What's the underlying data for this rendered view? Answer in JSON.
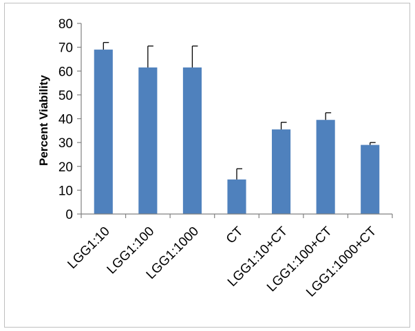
{
  "chart_data": {
    "type": "bar",
    "categories": [
      "LGG1:10",
      "LGG1:100",
      "LGG1:1000",
      "CT",
      "LGG1:10+CT",
      "LGG1:100+CT",
      "LGG1:1000+CT"
    ],
    "series": [
      {
        "values": [
          69,
          61.5,
          61.5,
          14.5,
          35.5,
          39.5,
          29
        ],
        "error_plus": [
          3,
          9,
          9,
          4.5,
          3,
          3,
          1
        ],
        "color": "#4F81BD"
      }
    ],
    "title": "",
    "xlabel": "",
    "ylabel": "Percent Viability",
    "ylim": [
      0,
      80
    ],
    "yticks": [
      0,
      10,
      20,
      30,
      40,
      50,
      60,
      70,
      80
    ],
    "grid": false,
    "legend": "none",
    "error_bars": "upper only"
  }
}
